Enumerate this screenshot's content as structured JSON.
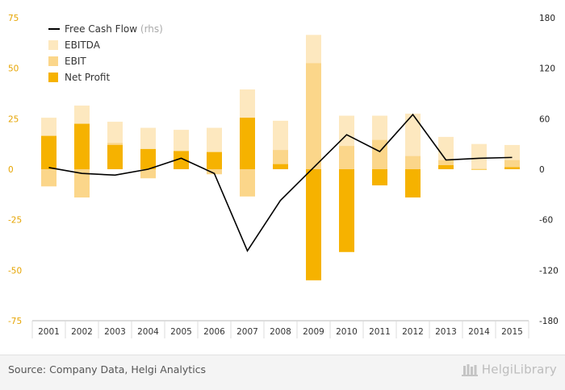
{
  "chart_data": {
    "type": "bar",
    "categories": [
      "2001",
      "2002",
      "2003",
      "2004",
      "2005",
      "2006",
      "2007",
      "2008",
      "2009",
      "2010",
      "2011",
      "2012",
      "2013",
      "2014",
      "2015"
    ],
    "series": [
      {
        "name": "EBITDA",
        "kind": "bar",
        "color": "#fde8bf",
        "values": [
          25.5,
          31.5,
          23.5,
          20.5,
          19.5,
          20.5,
          39.5,
          24,
          66.5,
          26.5,
          26.5,
          27.5,
          16,
          12.5,
          12
        ]
      },
      {
        "name": "EBIT",
        "kind": "bar",
        "color": "#fbd68a",
        "values": [
          -8.5,
          -14,
          13,
          -4.5,
          8,
          -2.5,
          -13.5,
          9.5,
          52.5,
          11.5,
          14.5,
          6.5,
          4.5,
          0.2,
          4.5
        ]
      },
      {
        "name": "Net Profit",
        "kind": "bar",
        "color": "#f6b200",
        "values": [
          16.5,
          22.5,
          12,
          10,
          9,
          8.5,
          25.5,
          2.5,
          -55,
          -41,
          -8,
          -14,
          2,
          0,
          1
        ]
      },
      {
        "name": "Free Cash Flow",
        "legend_note": "(rhs)",
        "kind": "line",
        "color": "#000000",
        "axis": "right",
        "values": [
          2,
          -5,
          -7,
          0,
          13,
          -5,
          -97,
          -37,
          2,
          41,
          21,
          65,
          11,
          13,
          14
        ]
      }
    ],
    "ylim_left": [
      -75,
      75
    ],
    "yticks_left": [
      "75",
      "50",
      "25",
      "0",
      "-25",
      "-50",
      "-75"
    ],
    "ylim_right": [
      -180,
      180
    ],
    "yticks_right": [
      "180",
      "120",
      "60",
      "0",
      "-60",
      "-120",
      "-180"
    ],
    "grid": false,
    "legend": "top-left"
  },
  "footer": {
    "source": "Source: Company Data, Helgi Analytics",
    "brand": "HelgiLibrary"
  }
}
